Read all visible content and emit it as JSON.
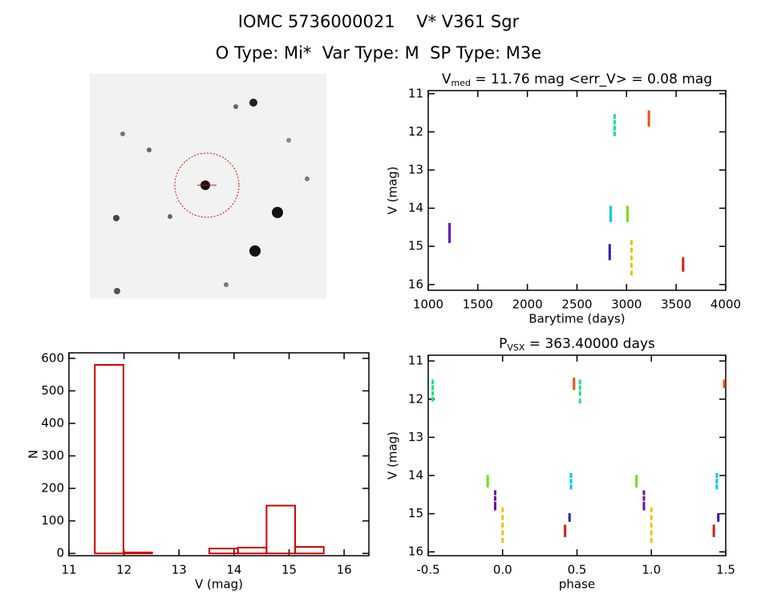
{
  "header": {
    "title": "IOMC 5736000021    V* V361 Sgr",
    "subtitle": "O Type: Mi*  Var Type: M  SP Type: M3e"
  },
  "chart_data": [
    {
      "type": "scatter",
      "title": {
        "base": "V",
        "subscript": "med",
        "rest": " = 11.76 mag <err_V> = 0.08 mag"
      },
      "x_label": "Barytime (days)",
      "y_label": "V (mag)",
      "xlim": [
        1000,
        4000
      ],
      "xticks": [
        1000,
        1500,
        2000,
        2500,
        3000,
        3500,
        4000
      ],
      "ylim": [
        10.92,
        16.15
      ],
      "yticks": [
        11,
        12,
        13,
        14,
        15,
        16
      ],
      "y_inverted": true,
      "series": [
        {
          "color": "#6a0dad",
          "x": [
            1215,
            1215,
            1215,
            1215,
            1215
          ],
          "values": [
            14.45,
            14.55,
            14.65,
            14.75,
            14.85
          ]
        },
        {
          "color": "#3020b0",
          "x": [
            2830,
            2830,
            2830,
            2830
          ],
          "values": [
            15.0,
            15.1,
            15.2,
            15.3
          ]
        },
        {
          "color": "#00c8e8",
          "x": [
            2840,
            2840,
            2840,
            2840
          ],
          "values": [
            14.0,
            14.1,
            14.2,
            14.3
          ]
        },
        {
          "color": "#20e080",
          "x": [
            2880,
            2880,
            2880,
            2880
          ],
          "values": [
            11.6,
            11.75,
            11.9,
            12.05
          ]
        },
        {
          "color": "#70e020",
          "x": [
            3010,
            3010,
            3010,
            3010
          ],
          "values": [
            14.0,
            14.1,
            14.2,
            14.3
          ]
        },
        {
          "color": "#f0c000",
          "x": [
            3050,
            3050,
            3050,
            3050,
            3050
          ],
          "values": [
            14.9,
            15.1,
            15.3,
            15.5,
            15.7
          ]
        },
        {
          "color": "#f05010",
          "x": [
            3225,
            3225,
            3225,
            3225
          ],
          "values": [
            11.5,
            11.6,
            11.7,
            11.8
          ]
        },
        {
          "color": "#d02020",
          "x": [
            3570,
            3570,
            3570,
            3570
          ],
          "values": [
            15.35,
            15.45,
            15.55,
            15.6
          ]
        }
      ]
    },
    {
      "type": "histogram",
      "x_label": "V (mag)",
      "y_label": "N",
      "color": "#d00000",
      "bins": [
        11.47,
        11.99,
        12.51,
        13.03,
        13.55,
        14.07,
        14.59,
        15.11,
        15.63
      ],
      "values": [
        580,
        3,
        0,
        0,
        15,
        18,
        147,
        20
      ],
      "xlim": [
        11,
        16.45
      ],
      "xticks": [
        11,
        12,
        13,
        14,
        15,
        16
      ],
      "ylim": [
        -7,
        617
      ],
      "yticks": [
        0,
        100,
        200,
        300,
        400,
        500,
        600
      ]
    },
    {
      "type": "scatter",
      "title": {
        "base": "P",
        "subscript": "VSX",
        "rest": " = 363.40000 days"
      },
      "x_label": "phase",
      "y_label": "V (mag)",
      "xlim": [
        -0.5,
        1.5
      ],
      "xticks": [
        {
          "value": -0.5,
          "label": "-0.5"
        },
        {
          "value": 0,
          "label": "0.0"
        },
        0.5,
        {
          "value": 1,
          "label": "1.0"
        },
        1.5
      ],
      "ylim": [
        10.85,
        16.1
      ],
      "yticks": [
        11,
        12,
        13,
        14,
        15,
        16
      ],
      "y_inverted": true,
      "series": [
        {
          "color": "#20e080",
          "x": [
            -0.47,
            -0.47,
            -0.47,
            -0.47
          ],
          "values": [
            11.55,
            11.7,
            11.85,
            12.0
          ]
        },
        {
          "color": "#20e080",
          "x": [
            0.52,
            0.52,
            0.52,
            0.52
          ],
          "values": [
            11.55,
            11.7,
            11.85,
            12.05
          ]
        },
        {
          "color": "#f05010",
          "x": [
            0.48,
            0.48,
            0.48
          ],
          "values": [
            11.5,
            11.6,
            11.7
          ]
        },
        {
          "color": "#f05010",
          "x": [
            1.49,
            1.49
          ],
          "values": [
            11.55,
            11.65
          ]
        },
        {
          "color": "#70e020",
          "x": [
            -0.1,
            -0.1,
            -0.1
          ],
          "values": [
            14.05,
            14.15,
            14.25
          ]
        },
        {
          "color": "#70e020",
          "x": [
            0.9,
            0.9,
            0.9
          ],
          "values": [
            14.05,
            14.15,
            14.25
          ]
        },
        {
          "color": "#6a0dad",
          "x": [
            -0.05,
            -0.05,
            -0.05,
            -0.05
          ],
          "values": [
            14.45,
            14.6,
            14.75,
            14.85
          ]
        },
        {
          "color": "#6a0dad",
          "x": [
            0.95,
            0.95,
            0.95,
            0.95
          ],
          "values": [
            14.45,
            14.6,
            14.75,
            14.85
          ]
        },
        {
          "color": "#f0c000",
          "x": [
            0,
            0,
            0,
            0,
            0
          ],
          "values": [
            14.9,
            15.1,
            15.3,
            15.5,
            15.7
          ]
        },
        {
          "color": "#f0c000",
          "x": [
            1,
            1,
            1,
            1,
            1
          ],
          "values": [
            14.9,
            15.1,
            15.3,
            15.5,
            15.7
          ]
        },
        {
          "color": "#d02020",
          "x": [
            0.42,
            0.42,
            0.42
          ],
          "values": [
            15.35,
            15.45,
            15.55
          ]
        },
        {
          "color": "#d02020",
          "x": [
            1.42,
            1.42,
            1.42
          ],
          "values": [
            15.35,
            15.45,
            15.55
          ]
        },
        {
          "color": "#3020b0",
          "x": [
            0.45,
            0.45
          ],
          "values": [
            15.05,
            15.15
          ]
        },
        {
          "color": "#3020b0",
          "x": [
            1.45,
            1.45
          ],
          "values": [
            15.05,
            15.15
          ]
        },
        {
          "color": "#00c8e8",
          "x": [
            0.46,
            0.46,
            0.46
          ],
          "values": [
            14.0,
            14.15,
            14.3
          ]
        },
        {
          "color": "#00c8e8",
          "x": [
            1.44,
            1.44,
            1.44
          ],
          "values": [
            14.0,
            14.15,
            14.3
          ]
        }
      ]
    }
  ]
}
